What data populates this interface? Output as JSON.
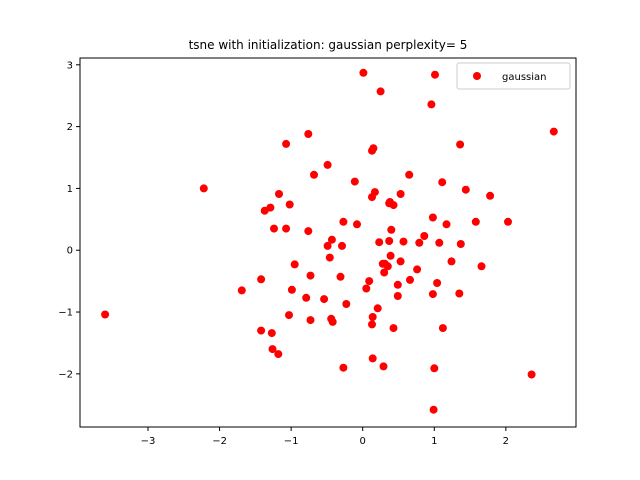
{
  "colors": {
    "point": "#ff0000",
    "axis": "#000000",
    "legend_border": "#cccccc"
  },
  "chart_data": {
    "type": "scatter",
    "title": "tsne with initialization: gaussian perplexity= 5",
    "xlabel": "",
    "ylabel": "",
    "xlim": [
      -3.95,
      2.98
    ],
    "ylim": [
      -2.86,
      3.11
    ],
    "grid": false,
    "legend_position": "top-right",
    "xticks": [
      -3,
      -2,
      -1,
      0,
      1,
      2
    ],
    "yticks": [
      -2,
      -1,
      0,
      1,
      2,
      3
    ],
    "series": [
      {
        "name": "gaussian",
        "color": "#ff0000",
        "x": [
          0.01,
          1.01,
          0.25,
          0.96,
          2.67,
          1.36,
          -0.76,
          0.15,
          -1.07,
          0.13,
          -0.49,
          0.65,
          -0.68,
          -2.22,
          -0.11,
          1.11,
          1.44,
          0.17,
          0.53,
          1.78,
          -1.17,
          0.13,
          0.38,
          -1.37,
          -1.29,
          -1.02,
          -0.08,
          -0.27,
          0.43,
          0.98,
          1.58,
          2.03,
          1.17,
          -0.76,
          -1.24,
          -1.07,
          0.4,
          0.86,
          0.23,
          -0.43,
          0.57,
          -0.49,
          -0.29,
          0.37,
          1.37,
          1.07,
          0.79,
          -0.46,
          0.39,
          0.31,
          0.53,
          -0.95,
          0.28,
          1.24,
          -0.73,
          1.66,
          0.35,
          0.76,
          -0.31,
          0.66,
          0.09,
          -1.42,
          1.04,
          -1.69,
          0.05,
          -0.99,
          0.49,
          0.98,
          1.35,
          -0.79,
          -0.54,
          0.21,
          -0.23,
          -1.03,
          0.14,
          -0.73,
          -0.44,
          0.13,
          0.43,
          1.12,
          -3.6,
          -1.42,
          -1.27,
          -1.18,
          0.14,
          -1.26,
          -0.27,
          0.29,
          2.36,
          1.0,
          0.99,
          -0.42,
          0.49,
          0.3,
          0.37
        ],
        "y": [
          2.87,
          2.84,
          2.57,
          2.36,
          1.92,
          1.71,
          1.88,
          1.65,
          1.72,
          1.61,
          1.38,
          1.22,
          1.22,
          1.0,
          1.11,
          1.1,
          0.98,
          0.94,
          0.91,
          0.88,
          0.91,
          0.86,
          0.78,
          0.64,
          0.69,
          0.74,
          0.42,
          0.46,
          0.73,
          0.53,
          0.46,
          0.46,
          0.42,
          0.31,
          0.35,
          0.35,
          0.33,
          0.23,
          0.13,
          0.17,
          0.14,
          0.07,
          0.07,
          0.15,
          0.1,
          0.12,
          0.12,
          -0.12,
          -0.09,
          -0.22,
          -0.18,
          -0.23,
          -0.22,
          -0.18,
          -0.41,
          -0.26,
          -0.26,
          -0.31,
          -0.43,
          -0.48,
          -0.5,
          -0.47,
          -0.53,
          -0.65,
          -0.62,
          -0.64,
          -0.56,
          -0.71,
          -0.7,
          -0.77,
          -0.79,
          -0.94,
          -0.87,
          -1.05,
          -1.08,
          -1.13,
          -1.11,
          -1.2,
          -1.26,
          -1.26,
          -1.04,
          -1.3,
          -1.34,
          -1.68,
          -1.75,
          -1.6,
          -1.9,
          -1.88,
          -2.01,
          -1.91,
          -2.58,
          -1.16,
          -0.74,
          -0.36,
          0.76
        ]
      }
    ]
  }
}
